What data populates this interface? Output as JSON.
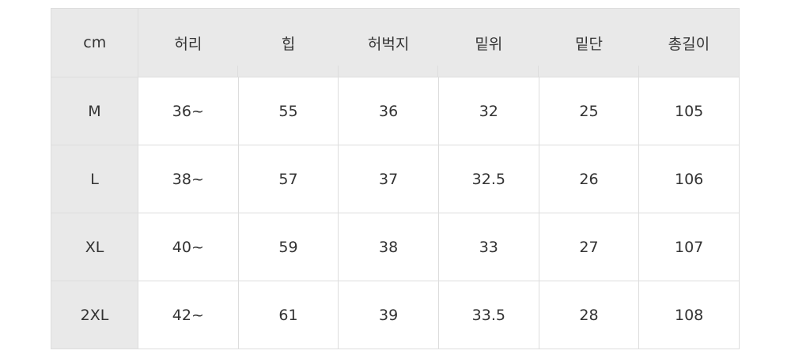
{
  "table": {
    "headers": [
      "cm",
      "허리",
      "힙",
      "허벅지",
      "밑위",
      "밑단",
      "총길이"
    ],
    "rows": [
      [
        "M",
        "36~",
        "55",
        "36",
        "32",
        "25",
        "105"
      ],
      [
        "L",
        "38~",
        "57",
        "37",
        "32.5",
        "26",
        "106"
      ],
      [
        "XL",
        "40~",
        "59",
        "38",
        "33",
        "27",
        "107"
      ],
      [
        "2XL",
        "42~",
        "61",
        "39",
        "33.5",
        "28",
        "108"
      ]
    ]
  },
  "colors": {
    "header_bg": "#e9e9e9",
    "border": "#dddddd"
  }
}
